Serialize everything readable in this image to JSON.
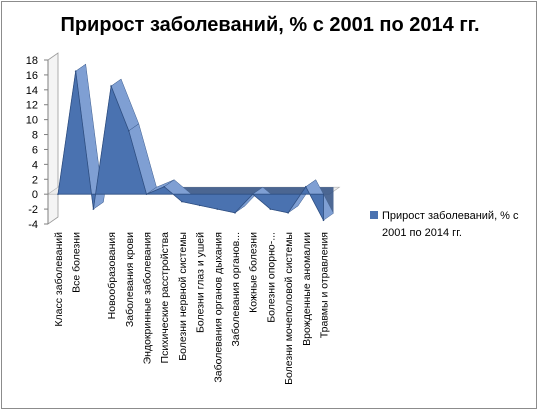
{
  "chart_data": {
    "type": "area",
    "title": "Прирост заболеваний, % с 2001 по 2014 гг.",
    "categories": [
      "Класс заболеваний",
      "Все болезни",
      "",
      "Новообразования",
      "Заболевания крови",
      "Эндокринные заболевания",
      "Психические расстройства",
      "Болезни нервной системы",
      "Болезни глаз и ушей",
      "Заболевания органов дыхания",
      "Заболевания органов...",
      "Кожные болезни",
      "Болезни опорно-...",
      "Болезни мочеполовой системы",
      "Врожденные аномалии",
      "Травмы и отравления"
    ],
    "series": [
      {
        "name": "Прирост заболеваний,  % с 2001 по 2014 гг.",
        "values": [
          0,
          16.5,
          -2,
          14.5,
          8.5,
          0,
          1,
          -1,
          -1.5,
          -2,
          -2.5,
          0,
          -2,
          -2.5,
          1,
          -3.5
        ]
      }
    ],
    "yticks": [
      18,
      16,
      14,
      12,
      10,
      8,
      6,
      4,
      2,
      0,
      -2,
      -4
    ],
    "ylim": [
      -4,
      18
    ],
    "legend_position": "right",
    "colors": {
      "fill": "#4a72b0",
      "fill_light": "#7f9fd3",
      "fill_dark": "#2f4f82"
    }
  }
}
